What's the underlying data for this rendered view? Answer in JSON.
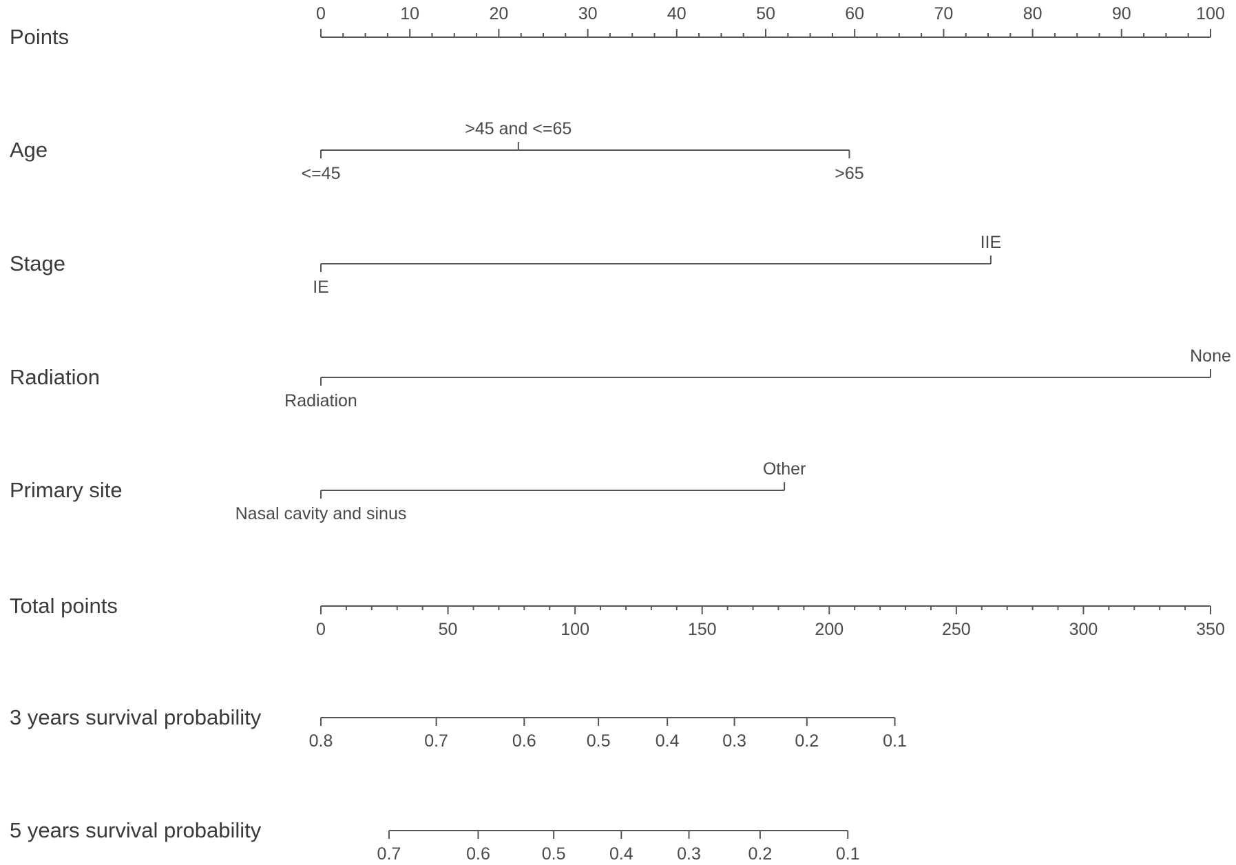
{
  "chart_data": {
    "type": "nomogram",
    "rows": [
      {
        "name": "Points",
        "kind": "scale",
        "min": 0,
        "max": 100,
        "major_ticks": [
          0,
          10,
          20,
          30,
          40,
          50,
          60,
          70,
          80,
          90,
          100
        ],
        "major_labels": [
          "0",
          "10",
          "20",
          "30",
          "40",
          "50",
          "60",
          "70",
          "80",
          "90",
          "100"
        ],
        "minor_step": 2.5,
        "label_side": "above"
      },
      {
        "name": "Age",
        "kind": "factor",
        "levels": [
          {
            "label": "<=45",
            "points": 0,
            "label_side": "below"
          },
          {
            "label": ">45 and <=65",
            "points": 22.2,
            "label_side": "above"
          },
          {
            "label": ">65",
            "points": 59.4,
            "label_side": "below"
          }
        ]
      },
      {
        "name": "Stage",
        "kind": "factor",
        "levels": [
          {
            "label": "IE",
            "points": 0,
            "label_side": "below"
          },
          {
            "label": "IIE",
            "points": 75.3,
            "label_side": "above"
          }
        ]
      },
      {
        "name": "Radiation",
        "kind": "factor",
        "levels": [
          {
            "label": "Radiation",
            "points": 0,
            "label_side": "below"
          },
          {
            "label": "None",
            "points": 100,
            "label_side": "above"
          }
        ]
      },
      {
        "name": "Primary site",
        "kind": "factor",
        "levels": [
          {
            "label": "Nasal cavity and sinus",
            "points": 0,
            "label_side": "below"
          },
          {
            "label": "Other",
            "points": 52.1,
            "label_side": "above"
          }
        ]
      },
      {
        "name": "Total points",
        "kind": "scale",
        "min": 0,
        "max": 350,
        "major_ticks": [
          0,
          50,
          100,
          150,
          200,
          250,
          300,
          350
        ],
        "major_labels": [
          "0",
          "50",
          "100",
          "150",
          "200",
          "250",
          "300",
          "350"
        ],
        "minor_step": 10,
        "label_side": "below"
      },
      {
        "name": "3 years survival probability",
        "kind": "probability",
        "label_side": "below",
        "ticks": [
          {
            "label": "0.8",
            "total_points": 0
          },
          {
            "label": "0.7",
            "total_points": 45.4
          },
          {
            "label": "0.6",
            "total_points": 80.0
          },
          {
            "label": "0.5",
            "total_points": 109.2
          },
          {
            "label": "0.4",
            "total_points": 136.3
          },
          {
            "label": "0.3",
            "total_points": 162.7
          },
          {
            "label": "0.2",
            "total_points": 191.2
          },
          {
            "label": "0.1",
            "total_points": 225.8
          }
        ]
      },
      {
        "name": "5 years survival probability",
        "kind": "probability",
        "label_side": "below",
        "ticks": [
          {
            "label": "0.7",
            "total_points": 26.8
          },
          {
            "label": "0.6",
            "total_points": 61.9
          },
          {
            "label": "0.5",
            "total_points": 91.6
          },
          {
            "label": "0.4",
            "total_points": 118.2
          },
          {
            "label": "0.3",
            "total_points": 144.8
          },
          {
            "label": "0.2",
            "total_points": 172.8
          },
          {
            "label": "0.1",
            "total_points": 207.3
          }
        ]
      }
    ]
  },
  "colors": {
    "line": "#555555",
    "row_label": "#3a3a3a",
    "tick_label": "#4a4a4a",
    "background": "#ffffff"
  }
}
